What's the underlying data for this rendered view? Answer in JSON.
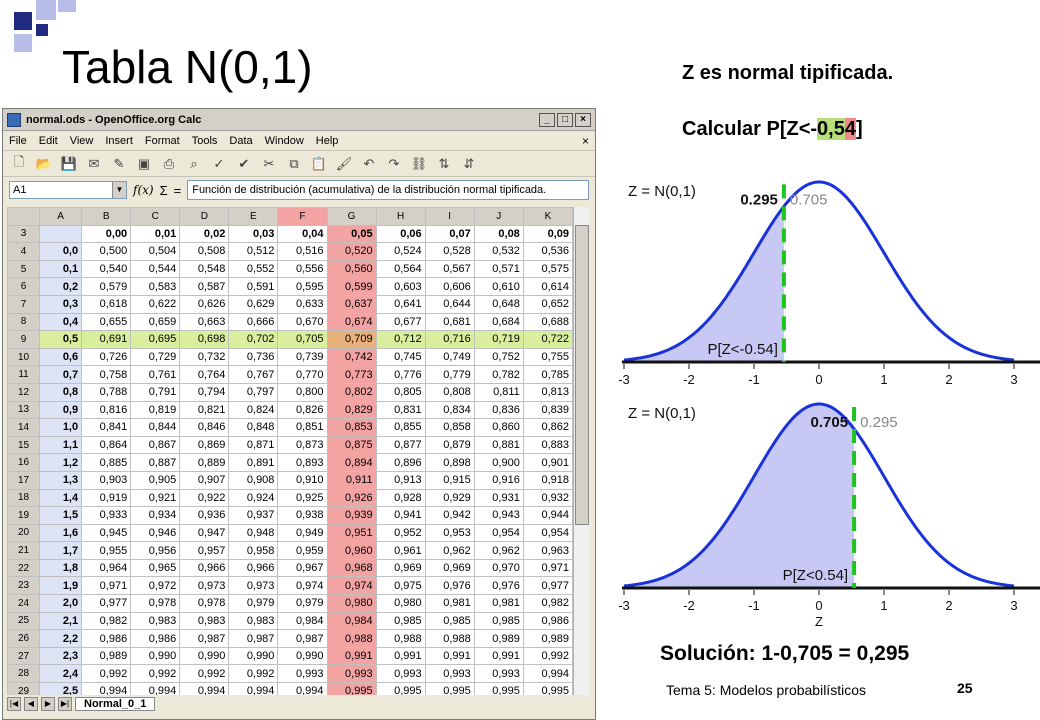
{
  "slide": {
    "title": "Tabla N(0,1)",
    "subtitle": "Z es normal tipificada.",
    "question_prefix": "Calcular P[Z<-",
    "question_green": "0,5",
    "question_red": "4",
    "question_suffix": "]",
    "solution": "Solución: 1-0,705 = 0,295",
    "footer": "Tema 5: Modelos probabilísticos",
    "page_number": "25"
  },
  "window": {
    "title": "normal.ods - OpenOffice.org Calc",
    "menu": [
      "File",
      "Edit",
      "View",
      "Insert",
      "Format",
      "Tools",
      "Data",
      "Window",
      "Help"
    ],
    "namebox": "A1",
    "formula": "Función de distribución (acumulativa) de la distribución normal tipificada.",
    "sheet_tab": "Normal_0_1",
    "columns": [
      "A",
      "B",
      "C",
      "D",
      "E",
      "F",
      "G",
      "H",
      "I",
      "J",
      "K"
    ],
    "header_row": [
      "3",
      "",
      "0,00",
      "0,01",
      "0,02",
      "0,03",
      "0,04",
      "0,05",
      "0,06",
      "0,07",
      "0,08",
      "0,09"
    ],
    "rows": [
      [
        "4",
        "0,0",
        "0,500",
        "0,504",
        "0,508",
        "0,512",
        "0,516",
        "0,520",
        "0,524",
        "0,528",
        "0,532",
        "0,536"
      ],
      [
        "5",
        "0,1",
        "0,540",
        "0,544",
        "0,548",
        "0,552",
        "0,556",
        "0,560",
        "0,564",
        "0,567",
        "0,571",
        "0,575"
      ],
      [
        "6",
        "0,2",
        "0,579",
        "0,583",
        "0,587",
        "0,591",
        "0,595",
        "0,599",
        "0,603",
        "0,606",
        "0,610",
        "0,614"
      ],
      [
        "7",
        "0,3",
        "0,618",
        "0,622",
        "0,626",
        "0,629",
        "0,633",
        "0,637",
        "0,641",
        "0,644",
        "0,648",
        "0,652"
      ],
      [
        "8",
        "0,4",
        "0,655",
        "0,659",
        "0,663",
        "0,666",
        "0,670",
        "0,674",
        "0,677",
        "0,681",
        "0,684",
        "0,688"
      ],
      [
        "9",
        "0,5",
        "0,691",
        "0,695",
        "0,698",
        "0,702",
        "0,705",
        "0,709",
        "0,712",
        "0,716",
        "0,719",
        "0,722"
      ],
      [
        "10",
        "0,6",
        "0,726",
        "0,729",
        "0,732",
        "0,736",
        "0,739",
        "0,742",
        "0,745",
        "0,749",
        "0,752",
        "0,755"
      ],
      [
        "11",
        "0,7",
        "0,758",
        "0,761",
        "0,764",
        "0,767",
        "0,770",
        "0,773",
        "0,776",
        "0,779",
        "0,782",
        "0,785"
      ],
      [
        "12",
        "0,8",
        "0,788",
        "0,791",
        "0,794",
        "0,797",
        "0,800",
        "0,802",
        "0,805",
        "0,808",
        "0,811",
        "0,813"
      ],
      [
        "13",
        "0,9",
        "0,816",
        "0,819",
        "0,821",
        "0,824",
        "0,826",
        "0,829",
        "0,831",
        "0,834",
        "0,836",
        "0,839"
      ],
      [
        "14",
        "1,0",
        "0,841",
        "0,844",
        "0,846",
        "0,848",
        "0,851",
        "0,853",
        "0,855",
        "0,858",
        "0,860",
        "0,862"
      ],
      [
        "15",
        "1,1",
        "0,864",
        "0,867",
        "0,869",
        "0,871",
        "0,873",
        "0,875",
        "0,877",
        "0,879",
        "0,881",
        "0,883"
      ],
      [
        "16",
        "1,2",
        "0,885",
        "0,887",
        "0,889",
        "0,891",
        "0,893",
        "0,894",
        "0,896",
        "0,898",
        "0,900",
        "0,901"
      ],
      [
        "17",
        "1,3",
        "0,903",
        "0,905",
        "0,907",
        "0,908",
        "0,910",
        "0,911",
        "0,913",
        "0,915",
        "0,916",
        "0,918"
      ],
      [
        "18",
        "1,4",
        "0,919",
        "0,921",
        "0,922",
        "0,924",
        "0,925",
        "0,926",
        "0,928",
        "0,929",
        "0,931",
        "0,932"
      ],
      [
        "19",
        "1,5",
        "0,933",
        "0,934",
        "0,936",
        "0,937",
        "0,938",
        "0,939",
        "0,941",
        "0,942",
        "0,943",
        "0,944"
      ],
      [
        "20",
        "1,6",
        "0,945",
        "0,946",
        "0,947",
        "0,948",
        "0,949",
        "0,951",
        "0,952",
        "0,953",
        "0,954",
        "0,954"
      ],
      [
        "21",
        "1,7",
        "0,955",
        "0,956",
        "0,957",
        "0,958",
        "0,959",
        "0,960",
        "0,961",
        "0,962",
        "0,962",
        "0,963"
      ],
      [
        "22",
        "1,8",
        "0,964",
        "0,965",
        "0,966",
        "0,966",
        "0,967",
        "0,968",
        "0,969",
        "0,969",
        "0,970",
        "0,971"
      ],
      [
        "23",
        "1,9",
        "0,971",
        "0,972",
        "0,973",
        "0,973",
        "0,974",
        "0,974",
        "0,975",
        "0,976",
        "0,976",
        "0,977"
      ],
      [
        "24",
        "2,0",
        "0,977",
        "0,978",
        "0,978",
        "0,979",
        "0,979",
        "0,980",
        "0,980",
        "0,981",
        "0,981",
        "0,982"
      ],
      [
        "25",
        "2,1",
        "0,982",
        "0,983",
        "0,983",
        "0,983",
        "0,984",
        "0,984",
        "0,985",
        "0,985",
        "0,985",
        "0,986"
      ],
      [
        "26",
        "2,2",
        "0,986",
        "0,986",
        "0,987",
        "0,987",
        "0,987",
        "0,988",
        "0,988",
        "0,988",
        "0,989",
        "0,989"
      ],
      [
        "27",
        "2,3",
        "0,989",
        "0,990",
        "0,990",
        "0,990",
        "0,990",
        "0,991",
        "0,991",
        "0,991",
        "0,991",
        "0,992"
      ],
      [
        "28",
        "2,4",
        "0,992",
        "0,992",
        "0,992",
        "0,992",
        "0,993",
        "0,993",
        "0,993",
        "0,993",
        "0,993",
        "0,994"
      ],
      [
        "29",
        "2,5",
        "0,994",
        "0,994",
        "0,994",
        "0,994",
        "0,994",
        "0,995",
        "0,995",
        "0,995",
        "0,995",
        "0,995"
      ]
    ],
    "selected_row_label": "9",
    "selected_column_index": 6
  },
  "chart_data": [
    {
      "type": "area",
      "title": "Z = N(0,1)",
      "xlim": [
        -3,
        3
      ],
      "x_ticks": [
        "-3",
        "-2",
        "-1",
        "0",
        "1",
        "2",
        "3"
      ],
      "xlabel": "",
      "cut_x": -0.54,
      "left_area_label": "0.295",
      "right_area_label": "0.705",
      "shaded_region": "left",
      "annotation": "P[Z<-0.54]"
    },
    {
      "type": "area",
      "title": "Z = N(0,1)",
      "xlim": [
        -3,
        3
      ],
      "x_ticks": [
        "-3",
        "-2",
        "-1",
        "0",
        "1",
        "2",
        "3"
      ],
      "xlabel": "Z",
      "cut_x": 0.54,
      "left_area_label": "0.705",
      "right_area_label": "0.295",
      "shaded_region": "left",
      "annotation": "P[Z<0.54]"
    }
  ],
  "colors": {
    "curve": "#1a33d9",
    "fill": "#c8c8f5",
    "cut_line": "#1ec41e",
    "highlight_col": "#f4a3a3",
    "highlight_row": "#d9ef9e",
    "deco_dark": "#1f2a80",
    "deco_light": "#b8bde8"
  }
}
